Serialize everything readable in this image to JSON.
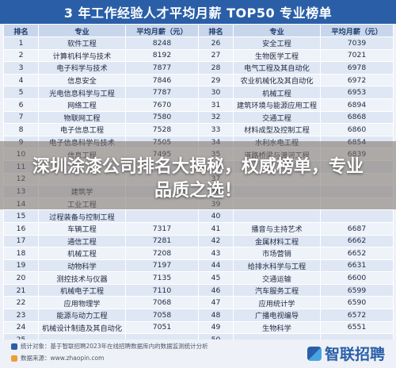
{
  "title": "3 年工作经验人才平均月薪 TOP50 专业榜单",
  "headers": [
    "排名",
    "专业",
    "平均月薪（元）",
    "排名",
    "专业",
    "平均月薪（元）"
  ],
  "rows": [
    [
      "1",
      "软件工程",
      "8248",
      "26",
      "安全工程",
      "7039"
    ],
    [
      "2",
      "计算机科学与技术",
      "8192",
      "27",
      "生物医学工程",
      "7021"
    ],
    [
      "3",
      "电子科学与技术",
      "7877",
      "28",
      "电气工程及其自动化",
      "6978"
    ],
    [
      "4",
      "信息安全",
      "7846",
      "29",
      "农业机械化及其自动化",
      "6972"
    ],
    [
      "5",
      "光电信息科学与工程",
      "7787",
      "30",
      "机械工程",
      "6953"
    ],
    [
      "6",
      "网络工程",
      "7670",
      "31",
      "建筑环境与能源应用工程",
      "6894"
    ],
    [
      "7",
      "物联网工程",
      "7580",
      "32",
      "交通工程",
      "6868"
    ],
    [
      "8",
      "电子信息工程",
      "7528",
      "33",
      "材料成型及控制工程",
      "6860"
    ],
    [
      "9",
      "电子信息科学与技术",
      "7505",
      "34",
      "水利水电工程",
      "6854"
    ],
    [
      "10",
      "信息工程",
      "7495",
      "35",
      "道路桥梁与渡河工程",
      "6839"
    ],
    [
      "11",
      "",
      "",
      "36",
      "",
      ""
    ],
    [
      "12",
      "",
      "",
      "37",
      "",
      ""
    ],
    [
      "13",
      "建筑学",
      "",
      "38",
      "",
      ""
    ],
    [
      "14",
      "工业工程",
      "",
      "39",
      "",
      ""
    ],
    [
      "15",
      "过程装备与控制工程",
      "",
      "40",
      "",
      ""
    ],
    [
      "16",
      "车辆工程",
      "7317",
      "41",
      "播音与主持艺术",
      "6687"
    ],
    [
      "17",
      "通信工程",
      "7281",
      "42",
      "金属材料工程",
      "6662"
    ],
    [
      "18",
      "机械工程",
      "7208",
      "43",
      "市场营销",
      "6652"
    ],
    [
      "19",
      "动物科学",
      "7197",
      "44",
      "给排水科学与工程",
      "6631"
    ],
    [
      "20",
      "测控技术与仪器",
      "7135",
      "45",
      "交通运输",
      "6600"
    ],
    [
      "21",
      "机械电子工程",
      "7110",
      "46",
      "汽车服务工程",
      "6599"
    ],
    [
      "22",
      "应用物理学",
      "7068",
      "47",
      "应用统计学",
      "6590"
    ],
    [
      "23",
      "能源与动力工程",
      "7058",
      "48",
      "广播电视编导",
      "6572"
    ],
    [
      "24",
      "机械设计制造及其自动化",
      "7051",
      "49",
      "生物科学",
      "6551"
    ],
    [
      "25",
      "",
      "",
      "50",
      "",
      ""
    ]
  ],
  "footer": {
    "stat": "统计对象：基于智联招聘2023年在线招聘数据库内的数据监测统计分析",
    "source": "数据来源：www.zhaopin.com",
    "brand": "智联招聘"
  },
  "headline": "深圳涂漆公司排名大揭秘，权威榜单，专业品质之选！",
  "colors": {
    "accent": "#2a5fa8",
    "header_bg": "#c8d6ec",
    "row_odd": "#dfe7f4",
    "row_even": "#eef2f9"
  }
}
